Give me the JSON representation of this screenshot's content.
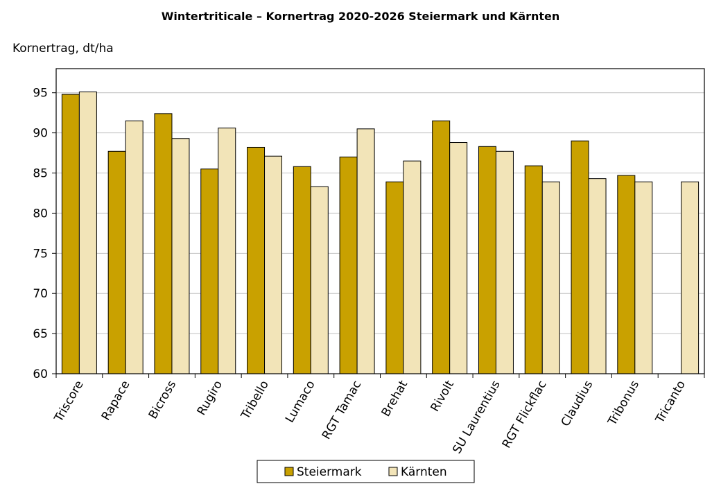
{
  "chart_data": {
    "type": "bar",
    "title": "Wintertriticale – Kornertrag 2020-2026 Steiermark und Kärnten",
    "y_label": "Kornertrag, dt/ha",
    "categories": [
      "Triscore",
      "Rapace",
      "Bicross",
      "Rugiro",
      "Tribello",
      "Lumaco",
      "RGT Tamac",
      "Brehat",
      "Rivolt",
      "SU Laurentius",
      "RGT Flickflac",
      "Claudius",
      "Tribonus",
      "Tricanto"
    ],
    "series": [
      {
        "name": "Steiermark",
        "color": "#c9a100",
        "values": [
          94.8,
          87.7,
          92.4,
          85.5,
          88.2,
          85.8,
          87.0,
          83.9,
          91.5,
          88.3,
          85.9,
          89.0,
          84.7,
          null
        ]
      },
      {
        "name": "Kärnten",
        "color": "#f2e4b8",
        "values": [
          95.1,
          91.5,
          89.3,
          90.6,
          87.1,
          83.3,
          90.5,
          86.5,
          88.8,
          87.7,
          83.9,
          84.3,
          83.9,
          83.9
        ]
      }
    ],
    "ylim": [
      60,
      98
    ],
    "yticks": [
      60,
      65,
      70,
      75,
      80,
      85,
      90,
      95
    ],
    "grid": true,
    "legend": "bottom"
  }
}
